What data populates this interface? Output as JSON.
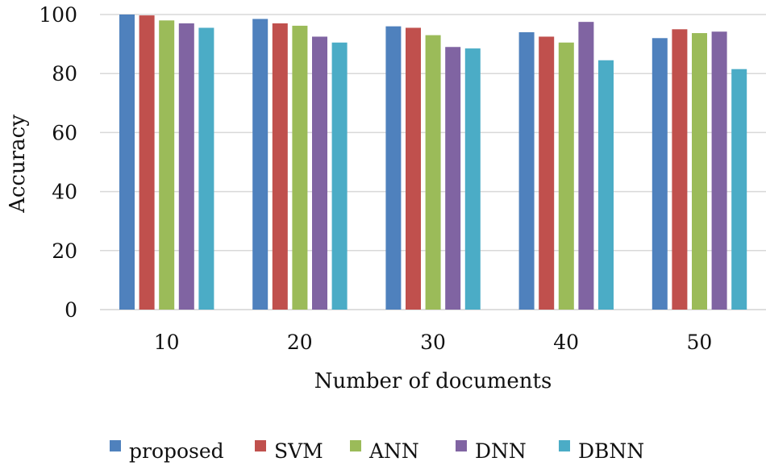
{
  "chart_data": {
    "type": "bar",
    "title": "",
    "xlabel": "Number of documents",
    "ylabel": "Accuracy",
    "categories": [
      "10",
      "20",
      "30",
      "40",
      "50"
    ],
    "ylim": [
      0,
      100
    ],
    "yticks": [
      "0",
      "20",
      "40",
      "60",
      "80",
      "100"
    ],
    "grid": true,
    "legend_position": "bottom",
    "series": [
      {
        "name": "proposed",
        "color": "#4F81BD",
        "values": [
          100,
          98.5,
          96,
          94,
          92
        ]
      },
      {
        "name": "SVM",
        "color": "#C0504D",
        "values": [
          99.7,
          97,
          95.5,
          92.5,
          95
        ]
      },
      {
        "name": "ANN",
        "color": "#9BBB59",
        "values": [
          98,
          96.2,
          93,
          90.5,
          93.7
        ]
      },
      {
        "name": "DNN",
        "color": "#8064A2",
        "values": [
          97,
          92.5,
          89,
          97.5,
          94.2
        ]
      },
      {
        "name": "DBNN",
        "color": "#4BACC6",
        "values": [
          95.5,
          90.5,
          88.5,
          84.5,
          81.5
        ]
      }
    ]
  }
}
